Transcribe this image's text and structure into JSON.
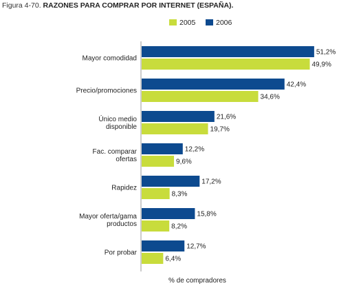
{
  "title_prefix": "Figura 4-70.",
  "title_text": "RAZONES PARA COMPRAR POR INTERNET (ESPAÑA).",
  "colors": {
    "2005": "#c8dc3c",
    "2006": "#0d4a8f",
    "axis": "#999999"
  },
  "chart_data": {
    "type": "bar",
    "orientation": "horizontal",
    "title": "Figura 4-70. RAZONES PARA COMPRAR POR INTERNET (ESPAÑA).",
    "xlabel": "% de compradores",
    "ylabel": "",
    "xlim": [
      0,
      52
    ],
    "grid": false,
    "legend_position": "top-right",
    "categories": [
      [
        "Mayor comodidad"
      ],
      [
        "Precio/promociones"
      ],
      [
        "Único medio",
        "disponible"
      ],
      [
        "Fac. comparar",
        "ofertas"
      ],
      [
        "Rapidez"
      ],
      [
        "Mayor oferta/gama",
        "productos"
      ],
      [
        "Por probar"
      ]
    ],
    "series": [
      {
        "name": "2006",
        "values": [
          51.2,
          42.4,
          21.6,
          12.2,
          17.2,
          15.8,
          12.7
        ],
        "labels": [
          "51,2%",
          "42,4%",
          "21,6%",
          "12,2%",
          "17,2%",
          "15,8%",
          "12,7%"
        ]
      },
      {
        "name": "2005",
        "values": [
          49.9,
          34.6,
          19.7,
          9.6,
          8.3,
          8.2,
          6.4
        ],
        "labels": [
          "49,9%",
          "34,6%",
          "19,7%",
          "9,6%",
          "8,3%",
          "8,2%",
          "6,4%"
        ]
      }
    ],
    "legend": [
      "2005",
      "2006"
    ]
  }
}
